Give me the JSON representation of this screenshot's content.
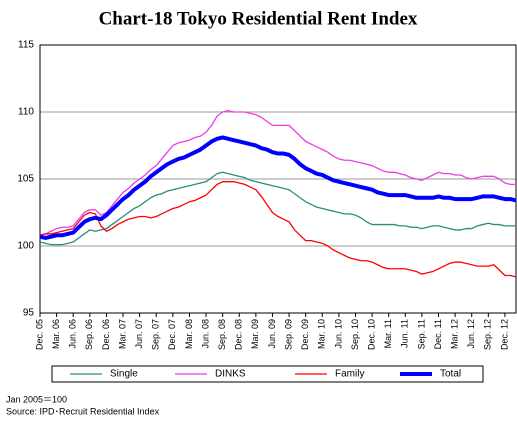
{
  "chart_data": {
    "type": "line",
    "title": "Chart-18 Tokyo Residential Rent Index",
    "categories": [
      "Dec. 05",
      null,
      null,
      "Mar. 06",
      null,
      null,
      "Jun. 06",
      null,
      null,
      "Sep. 06",
      null,
      null,
      "Dec. 06",
      null,
      null,
      "Mar. 07",
      null,
      null,
      "Jun. 07",
      null,
      null,
      "Sep. 07",
      null,
      null,
      "Dec. 07",
      null,
      null,
      "Mar. 08",
      null,
      null,
      "Jun. 08",
      null,
      null,
      "Sep. 08",
      null,
      null,
      "Dec. 08",
      null,
      null,
      "Mar. 09",
      null,
      null,
      "Jun. 09",
      null,
      null,
      "Sep. 09",
      null,
      null,
      "Dec. 09",
      null,
      null,
      "Mar. 10",
      null,
      null,
      "Jun. 10",
      null,
      null,
      "Sep. 10",
      null,
      null,
      "Dec. 10",
      null,
      null,
      "Mar. 11",
      null,
      null,
      "Jun. 11",
      null,
      null,
      "Sep. 11",
      null,
      null,
      "Dec. 11",
      null,
      null,
      "Mar. 12",
      null,
      null,
      "Jun. 12",
      null,
      null,
      "Sep. 12",
      null,
      null,
      "Dec. 12",
      null,
      null
    ],
    "series": [
      {
        "name": "Single",
        "color": "#2e8b7a",
        "width": 1.3,
        "values": [
          100.3,
          100.2,
          100.1,
          100.1,
          100.1,
          100.2,
          100.3,
          100.6,
          100.9,
          101.2,
          101.1,
          101.2,
          101.3,
          101.6,
          101.9,
          102.2,
          102.5,
          102.8,
          103.0,
          103.3,
          103.6,
          103.8,
          103.9,
          104.1,
          104.2,
          104.3,
          104.4,
          104.5,
          104.6,
          104.7,
          104.8,
          105.1,
          105.4,
          105.5,
          105.4,
          105.3,
          105.2,
          105.1,
          104.9,
          104.8,
          104.7,
          104.6,
          104.5,
          104.4,
          104.3,
          104.2,
          103.9,
          103.6,
          103.3,
          103.1,
          102.9,
          102.8,
          102.7,
          102.6,
          102.5,
          102.4,
          102.4,
          102.3,
          102.1,
          101.8,
          101.6,
          101.6,
          101.6,
          101.6,
          101.6,
          101.5,
          101.5,
          101.4,
          101.4,
          101.3,
          101.4,
          101.5,
          101.5,
          101.4,
          101.3,
          101.2,
          101.2,
          101.3,
          101.3,
          101.5,
          101.6,
          101.7,
          101.6,
          101.6,
          101.5,
          101.5,
          101.5
        ]
      },
      {
        "name": "DINKS",
        "color": "#e83ee8",
        "width": 1.3,
        "values": [
          100.8,
          100.9,
          101.1,
          101.3,
          101.4,
          101.4,
          101.5,
          102.0,
          102.5,
          102.7,
          102.7,
          102.3,
          102.5,
          103.0,
          103.5,
          104.0,
          104.3,
          104.7,
          105.0,
          105.3,
          105.7,
          106.0,
          106.5,
          107.0,
          107.5,
          107.7,
          107.8,
          107.9,
          108.1,
          108.2,
          108.5,
          109.0,
          109.7,
          110.0,
          110.1,
          110.0,
          110.0,
          110.0,
          109.9,
          109.8,
          109.6,
          109.3,
          109.0,
          109.0,
          109.0,
          109.0,
          108.6,
          108.2,
          107.8,
          107.6,
          107.4,
          107.2,
          107.0,
          106.7,
          106.5,
          106.4,
          106.4,
          106.3,
          106.2,
          106.1,
          106.0,
          105.8,
          105.6,
          105.5,
          105.5,
          105.4,
          105.3,
          105.1,
          105.0,
          104.9,
          105.1,
          105.3,
          105.5,
          105.4,
          105.4,
          105.3,
          105.3,
          105.1,
          105.0,
          105.1,
          105.2,
          105.2,
          105.2,
          105.0,
          104.7,
          104.6,
          104.6
        ]
      },
      {
        "name": "Family",
        "color": "#ff0000",
        "width": 1.3,
        "values": [
          100.8,
          100.9,
          100.9,
          101.0,
          101.1,
          101.2,
          101.3,
          101.8,
          102.3,
          102.5,
          102.4,
          101.5,
          101.1,
          101.3,
          101.6,
          101.8,
          102.0,
          102.1,
          102.2,
          102.2,
          102.1,
          102.2,
          102.4,
          102.6,
          102.8,
          102.9,
          103.1,
          103.3,
          103.4,
          103.6,
          103.8,
          104.2,
          104.6,
          104.8,
          104.8,
          104.8,
          104.7,
          104.6,
          104.4,
          104.2,
          103.7,
          103.1,
          102.5,
          102.2,
          102.0,
          101.8,
          101.2,
          100.8,
          100.4,
          100.4,
          100.3,
          100.2,
          100.0,
          99.7,
          99.5,
          99.3,
          99.1,
          99.0,
          98.9,
          98.9,
          98.8,
          98.6,
          98.4,
          98.3,
          98.3,
          98.3,
          98.3,
          98.2,
          98.1,
          97.9,
          98.0,
          98.1,
          98.3,
          98.5,
          98.7,
          98.8,
          98.8,
          98.7,
          98.6,
          98.5,
          98.5,
          98.5,
          98.6,
          98.2,
          97.8,
          97.8,
          97.7
        ]
      },
      {
        "name": "Total",
        "color": "#0000ff",
        "width": 4,
        "values": [
          100.7,
          100.6,
          100.7,
          100.8,
          100.8,
          100.9,
          101.0,
          101.4,
          101.8,
          102.0,
          102.1,
          102.0,
          102.3,
          102.7,
          103.1,
          103.5,
          103.8,
          104.2,
          104.5,
          104.8,
          105.2,
          105.5,
          105.8,
          106.1,
          106.3,
          106.5,
          106.6,
          106.8,
          107.0,
          107.2,
          107.5,
          107.8,
          108.0,
          108.1,
          108.0,
          107.9,
          107.8,
          107.7,
          107.6,
          107.5,
          107.3,
          107.2,
          107.0,
          106.9,
          106.9,
          106.8,
          106.5,
          106.1,
          105.8,
          105.6,
          105.4,
          105.3,
          105.1,
          104.9,
          104.8,
          104.7,
          104.6,
          104.5,
          104.4,
          104.3,
          104.2,
          104.0,
          103.9,
          103.8,
          103.8,
          103.8,
          103.8,
          103.7,
          103.6,
          103.6,
          103.6,
          103.6,
          103.7,
          103.6,
          103.6,
          103.5,
          103.5,
          103.5,
          103.5,
          103.6,
          103.7,
          103.7,
          103.7,
          103.6,
          103.5,
          103.5,
          103.4
        ]
      }
    ],
    "ylim": [
      95,
      115
    ],
    "yticks": [
      95,
      100,
      105,
      110,
      115
    ],
    "grid": true,
    "legend": "bottom",
    "notes": [
      "Jan 2005＝100",
      "Source: IPD･Recruit Residential Index"
    ]
  }
}
